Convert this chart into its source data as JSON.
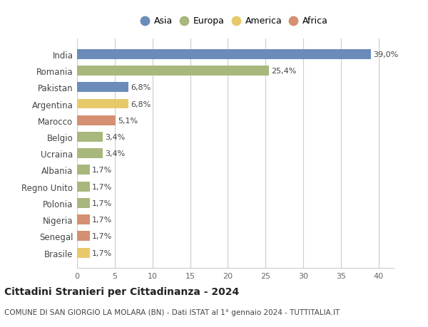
{
  "countries": [
    "Brasile",
    "Senegal",
    "Nigeria",
    "Polonia",
    "Regno Unito",
    "Albania",
    "Ucraina",
    "Belgio",
    "Marocco",
    "Argentina",
    "Pakistan",
    "Romania",
    "India"
  ],
  "values": [
    1.7,
    1.7,
    1.7,
    1.7,
    1.7,
    1.7,
    3.4,
    3.4,
    5.1,
    6.8,
    6.8,
    25.4,
    39.0
  ],
  "labels": [
    "1,7%",
    "1,7%",
    "1,7%",
    "1,7%",
    "1,7%",
    "1,7%",
    "3,4%",
    "3,4%",
    "5,1%",
    "6,8%",
    "6,8%",
    "25,4%",
    "39,0%"
  ],
  "continents": [
    "America",
    "Africa",
    "Africa",
    "Europa",
    "Europa",
    "Europa",
    "Europa",
    "Europa",
    "Africa",
    "America",
    "Asia",
    "Europa",
    "Asia"
  ],
  "colors": {
    "Asia": "#6b8cba",
    "Europa": "#a8b87c",
    "America": "#e8c96a",
    "Africa": "#d49070"
  },
  "legend_order": [
    "Asia",
    "Europa",
    "America",
    "Africa"
  ],
  "xlim": [
    0,
    42
  ],
  "xticks": [
    0,
    5,
    10,
    15,
    20,
    25,
    30,
    35,
    40
  ],
  "title": "Cittadini Stranieri per Cittadinanza - 2024",
  "subtitle": "COMUNE DI SAN GIORGIO LA MOLARA (BN) - Dati ISTAT al 1° gennaio 2024 - TUTTITALIA.IT",
  "bg_color": "#ffffff",
  "grid_color": "#cccccc",
  "bar_height": 0.6
}
